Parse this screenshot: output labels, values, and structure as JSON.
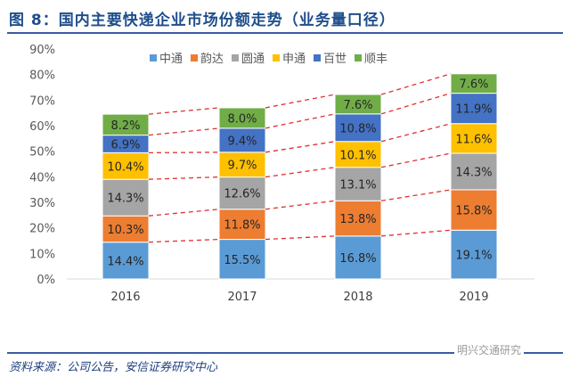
{
  "title": "图 8：国内主要快递企业市场份额走势（业务量口径）",
  "source": "资料来源：公司公告，安信证券研究中心",
  "watermark": "明兴交通研究",
  "chart_data": {
    "type": "bar",
    "stacked": true,
    "categories": [
      "2016",
      "2017",
      "2018",
      "2019"
    ],
    "series": [
      {
        "name": "中通",
        "color": "#5b9bd5",
        "values": [
          14.4,
          15.5,
          16.8,
          19.1
        ]
      },
      {
        "name": "韵达",
        "color": "#ed7d31",
        "values": [
          10.3,
          11.8,
          13.8,
          15.8
        ]
      },
      {
        "name": "圆通",
        "color": "#a5a5a5",
        "values": [
          14.3,
          12.6,
          13.1,
          14.3
        ]
      },
      {
        "name": "申通",
        "color": "#ffc000",
        "values": [
          10.4,
          9.7,
          10.1,
          11.6
        ]
      },
      {
        "name": "百世",
        "color": "#4472c4",
        "values": [
          6.9,
          9.4,
          10.8,
          11.9
        ]
      },
      {
        "name": "顺丰",
        "color": "#70ad47",
        "values": [
          8.2,
          8.0,
          7.6,
          7.6
        ]
      }
    ],
    "yticks": [
      "0%",
      "10%",
      "20%",
      "30%",
      "40%",
      "50%",
      "60%",
      "70%",
      "80%",
      "90%"
    ],
    "ylim": [
      0,
      90
    ],
    "legend": "top",
    "grid": false,
    "connector_lines": "red dashed"
  }
}
